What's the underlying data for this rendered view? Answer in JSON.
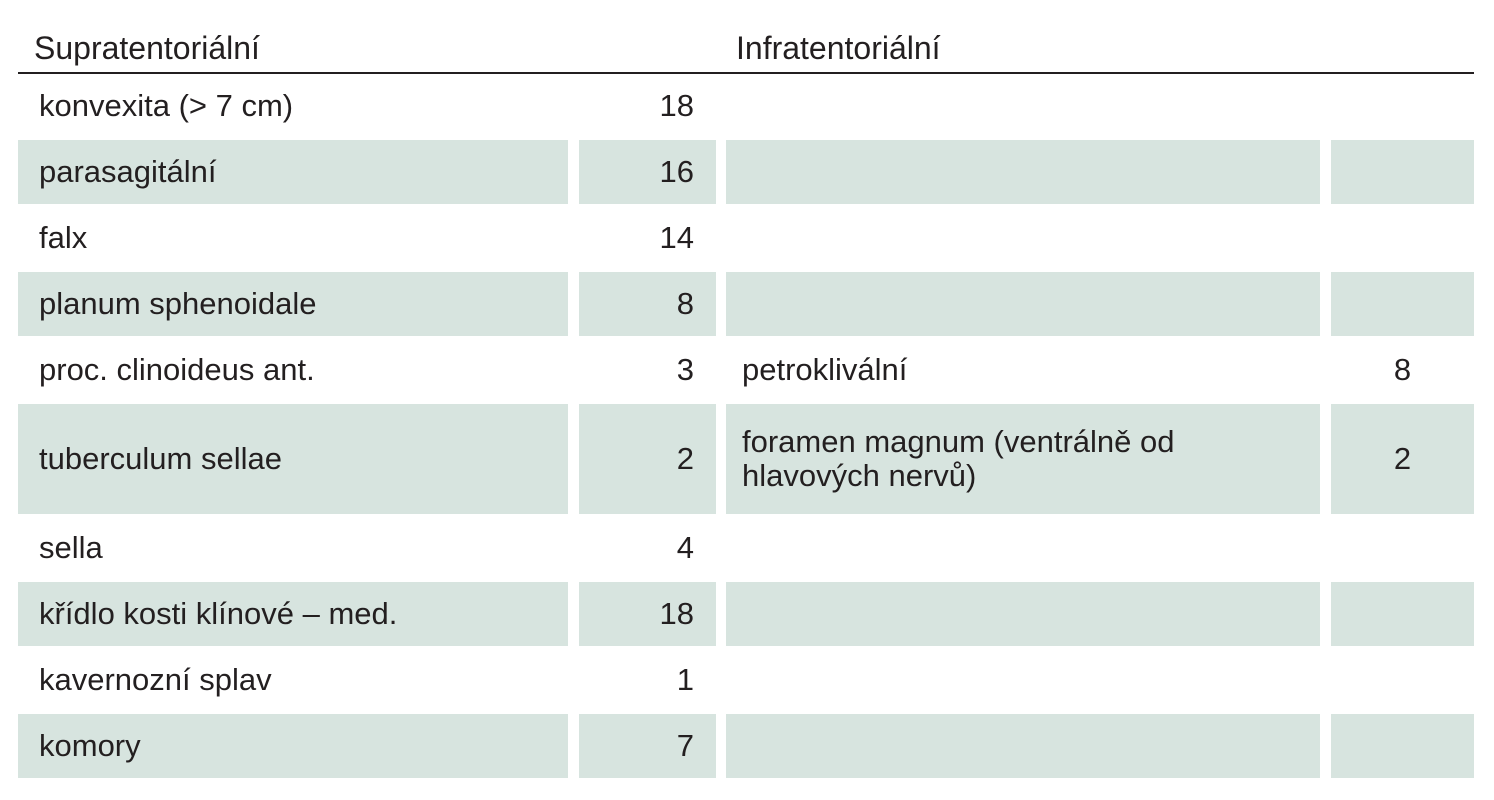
{
  "header": {
    "supratentorial": "Supratentoriální",
    "infratentorial": "Infratentoriální"
  },
  "rows": [
    {
      "supra_label": "konvexita (> 7 cm)",
      "supra_value": "18",
      "infra_label": "",
      "infra_value": ""
    },
    {
      "supra_label": "parasagitální",
      "supra_value": "16",
      "infra_label": "",
      "infra_value": ""
    },
    {
      "supra_label": "falx",
      "supra_value": "14",
      "infra_label": "",
      "infra_value": ""
    },
    {
      "supra_label": "planum sphenoidale",
      "supra_value": "8",
      "infra_label": "",
      "infra_value": ""
    },
    {
      "supra_label": "proc. clinoideus ant.",
      "supra_value": "3",
      "infra_label": "petroklivální",
      "infra_value": "8"
    },
    {
      "supra_label": "tuberculum sellae",
      "supra_value": "2",
      "infra_label": "foramen magnum (ventrálně od hlavových nervů)",
      "infra_value": "2"
    },
    {
      "supra_label": "sella",
      "supra_value": "4",
      "infra_label": "",
      "infra_value": ""
    },
    {
      "supra_label": "křídlo kosti klínové – med.",
      "supra_value": "18",
      "infra_label": "",
      "infra_value": ""
    },
    {
      "supra_label": "kavernozní splav",
      "supra_value": "1",
      "infra_label": "",
      "infra_value": ""
    },
    {
      "supra_label": "komory",
      "supra_value": "7",
      "infra_label": "",
      "infra_value": ""
    }
  ]
}
